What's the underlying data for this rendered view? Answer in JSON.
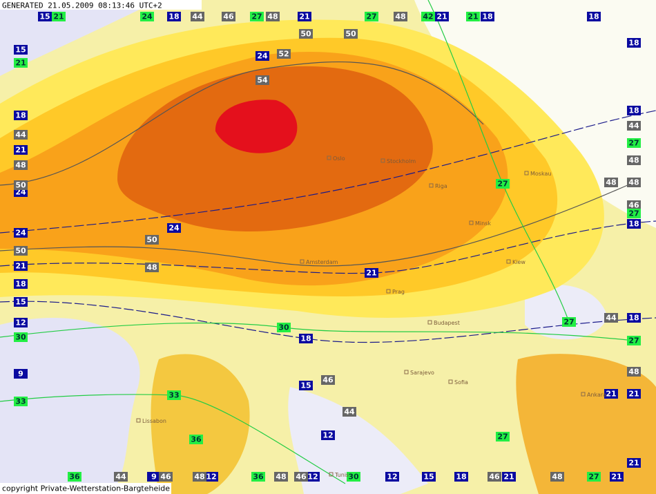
{
  "header": {
    "title": "GENERATED 21.05.2009 08:13:46 UTC+2"
  },
  "footer": {
    "copyright": "copyright Private-Wetterstation-Bargteheide"
  },
  "blue_labels": [
    15,
    18,
    21,
    21,
    18,
    18,
    15,
    18,
    24,
    18,
    18,
    21,
    24,
    24,
    24,
    18,
    21,
    21,
    18,
    15,
    12,
    18,
    18,
    9,
    15,
    21,
    21,
    12,
    21,
    21,
    12,
    9,
    12,
    12,
    15,
    18,
    21
  ],
  "gray_labels": [
    44,
    46,
    48,
    48,
    50,
    50,
    52,
    54,
    44,
    48,
    50,
    50,
    50,
    48,
    44,
    48,
    48,
    48,
    46,
    44,
    48,
    46,
    44,
    44,
    46,
    48,
    48,
    46,
    46,
    48
  ],
  "green_labels": [
    21,
    24,
    27,
    27,
    42,
    21,
    21,
    27,
    27,
    27,
    30,
    30,
    27,
    27,
    33,
    33,
    36,
    27,
    36,
    36,
    30,
    27
  ],
  "cities": [
    "Oslo",
    "Stockholm",
    "Riga",
    "Moskau",
    "Minsk",
    "Kiew",
    "Amsterdam",
    "Prag",
    "Budapest",
    "Sarajevo",
    "Sofia",
    "Lissabon",
    "Ankara",
    "Tunis"
  ]
}
